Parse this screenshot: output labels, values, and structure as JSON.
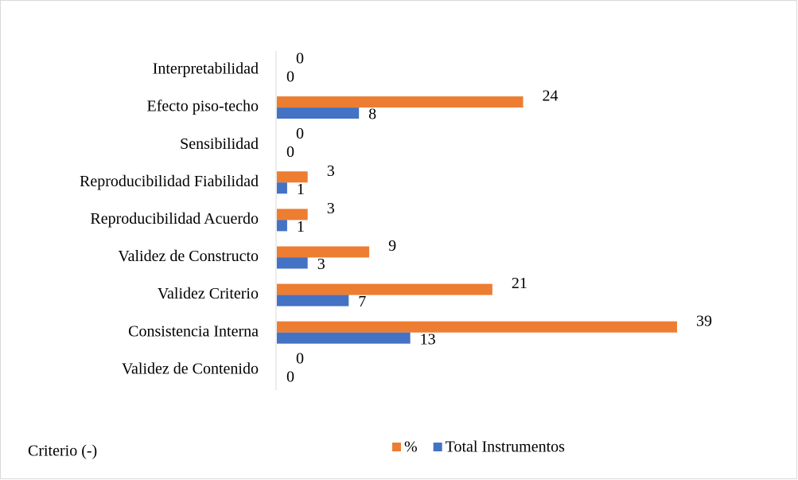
{
  "chart_data": {
    "type": "hbar",
    "categories": [
      "Interpretabilidad",
      "Efecto piso-techo",
      "Sensibilidad",
      "Reproducibilidad Fiabilidad",
      "Reproducibilidad Acuerdo",
      "Validez de Constructo",
      "Validez Criterio",
      "Consistencia Interna",
      "Validez de Contenido"
    ],
    "series": [
      {
        "name": "%",
        "color": "#ed7d31",
        "values": [
          0,
          24,
          0,
          3,
          3,
          9,
          21,
          39,
          0
        ]
      },
      {
        "name": "Total Instrumentos",
        "color": "#4472c4",
        "values": [
          0,
          8,
          0,
          1,
          1,
          3,
          7,
          13,
          0
        ]
      }
    ],
    "axis_label": "Criterio (-)",
    "legend": "bottom"
  }
}
